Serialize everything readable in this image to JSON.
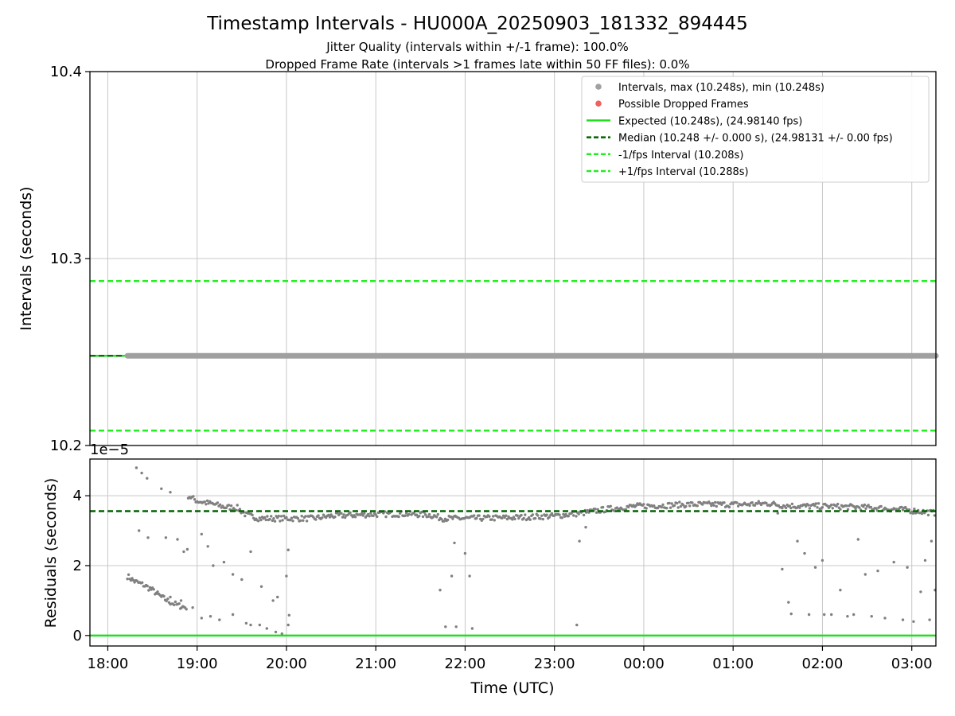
{
  "chart_data": [
    {
      "type": "line",
      "title": "Timestamp Intervals - HU000A_20250903_181332_894445",
      "subtitle_lines": [
        "Jitter Quality (intervals within +/-1 frame): 100.0%",
        "Dropped Frame Rate (intervals >1 frames late within 50 FF files): 0.0%"
      ],
      "ylabel": "Intervals (seconds)",
      "ylim": [
        10.2,
        10.4
      ],
      "xlim_hours": [
        17.8,
        27.27
      ],
      "yticks": [
        {
          "value": 10.2,
          "label": "10.2"
        },
        {
          "value": 10.3,
          "label": "10.3"
        },
        {
          "value": 10.4,
          "label": "10.4"
        }
      ],
      "grid": true,
      "legend_position": "top-right",
      "legend": [
        {
          "label": "Intervals, max (10.248s), min (10.248s)",
          "style": "marker",
          "color": "#a0a0a0"
        },
        {
          "label": "Possible Dropped Frames",
          "style": "marker",
          "color": "#f06060"
        },
        {
          "label": "Expected (10.248s), (24.98140 fps)",
          "style": "solid",
          "color": "#22dd22"
        },
        {
          "label": "Median (10.248 +/- 0.000 s), (24.98131 +/- 0.00 fps)",
          "style": "dashed",
          "color": "#006400"
        },
        {
          "label": "-1/fps Interval (10.208s)",
          "style": "dashed",
          "color": "#22ee22"
        },
        {
          "label": "+1/fps Interval (10.288s)",
          "style": "dashed",
          "color": "#22ee22"
        }
      ],
      "lines": [
        {
          "name": "expected",
          "y": 10.248,
          "color": "#22dd22",
          "style": "solid"
        },
        {
          "name": "median",
          "y": 10.248,
          "color": "#006400",
          "style": "dashed"
        },
        {
          "name": "minus-fps",
          "y": 10.208,
          "color": "#22ee22",
          "style": "dashed"
        },
        {
          "name": "plus-fps",
          "y": 10.288,
          "color": "#22ee22",
          "style": "dashed"
        }
      ],
      "intervals_series": {
        "x_start": 18.22,
        "x_end": 27.27,
        "y": 10.248,
        "color": "#a0a0a0"
      }
    },
    {
      "type": "scatter",
      "xlabel": "Time (UTC)",
      "ylabel": "Residuals (seconds)",
      "y_scale_label": "1e−5",
      "ylim": [
        -0.3,
        5.05
      ],
      "xlim_hours": [
        17.8,
        27.27
      ],
      "grid": true,
      "yticks": [
        {
          "value": 0,
          "label": "0"
        },
        {
          "value": 2,
          "label": "2"
        },
        {
          "value": 4,
          "label": "4"
        }
      ],
      "xticks": [
        {
          "value": 18,
          "label": "18:00"
        },
        {
          "value": 19,
          "label": "19:00"
        },
        {
          "value": 20,
          "label": "20:00"
        },
        {
          "value": 21,
          "label": "21:00"
        },
        {
          "value": 22,
          "label": "22:00"
        },
        {
          "value": 23,
          "label": "23:00"
        },
        {
          "value": 24,
          "label": "00:00"
        },
        {
          "value": 25,
          "label": "01:00"
        },
        {
          "value": 26,
          "label": "02:00"
        },
        {
          "value": 27,
          "label": "03:00"
        }
      ],
      "lines": [
        {
          "name": "zero",
          "y": 0,
          "color": "#22dd22",
          "style": "solid"
        },
        {
          "name": "median",
          "y": 3.56,
          "color": "#006400",
          "style": "dashed"
        }
      ],
      "marker_color": "#808080",
      "main_band": [
        [
          18.22,
          1.7
        ],
        [
          18.3,
          1.55
        ],
        [
          18.4,
          1.45
        ],
        [
          18.5,
          1.3
        ],
        [
          18.6,
          1.1
        ],
        [
          18.7,
          0.95
        ],
        [
          18.8,
          0.85
        ],
        [
          18.88,
          0.8
        ],
        [
          18.9,
          4.0
        ],
        [
          19.0,
          3.85
        ],
        [
          19.1,
          3.8
        ],
        [
          19.2,
          3.75
        ],
        [
          19.3,
          3.68
        ],
        [
          19.45,
          3.65
        ],
        [
          19.55,
          3.45
        ],
        [
          19.7,
          3.35
        ],
        [
          20.0,
          3.35
        ],
        [
          20.3,
          3.35
        ],
        [
          20.5,
          3.42
        ],
        [
          20.8,
          3.45
        ],
        [
          21.0,
          3.47
        ],
        [
          21.3,
          3.48
        ],
        [
          21.6,
          3.45
        ],
        [
          21.75,
          3.35
        ],
        [
          22.0,
          3.35
        ],
        [
          22.5,
          3.37
        ],
        [
          23.0,
          3.42
        ],
        [
          23.3,
          3.5
        ],
        [
          23.6,
          3.62
        ],
        [
          23.9,
          3.7
        ],
        [
          24.2,
          3.72
        ],
        [
          24.5,
          3.75
        ],
        [
          24.8,
          3.75
        ],
        [
          25.1,
          3.75
        ],
        [
          25.4,
          3.78
        ],
        [
          25.55,
          3.72
        ],
        [
          25.8,
          3.7
        ],
        [
          26.0,
          3.7
        ],
        [
          26.3,
          3.68
        ],
        [
          26.6,
          3.65
        ],
        [
          26.9,
          3.6
        ],
        [
          27.1,
          3.55
        ],
        [
          27.27,
          3.5
        ]
      ],
      "outlier_points": [
        [
          18.32,
          4.8
        ],
        [
          18.38,
          4.65
        ],
        [
          18.44,
          4.5
        ],
        [
          18.6,
          4.2
        ],
        [
          18.7,
          4.1
        ],
        [
          18.35,
          3.0
        ],
        [
          18.45,
          2.8
        ],
        [
          18.65,
          2.8
        ],
        [
          18.78,
          2.75
        ],
        [
          18.85,
          2.4
        ],
        [
          19.05,
          2.9
        ],
        [
          19.12,
          2.55
        ],
        [
          19.18,
          2.0
        ],
        [
          19.3,
          2.1
        ],
        [
          19.4,
          1.75
        ],
        [
          19.5,
          1.6
        ],
        [
          19.6,
          2.4
        ],
        [
          19.72,
          1.4
        ],
        [
          19.85,
          1.0
        ],
        [
          19.9,
          1.1
        ],
        [
          20.0,
          1.7
        ],
        [
          20.02,
          2.45
        ],
        [
          18.55,
          1.2
        ],
        [
          18.7,
          1.1
        ],
        [
          18.82,
          1.0
        ],
        [
          18.95,
          0.8
        ],
        [
          19.05,
          0.5
        ],
        [
          19.15,
          0.55
        ],
        [
          19.25,
          0.45
        ],
        [
          19.4,
          0.6
        ],
        [
          19.55,
          0.35
        ],
        [
          19.6,
          0.3
        ],
        [
          19.7,
          0.3
        ],
        [
          19.78,
          0.2
        ],
        [
          19.88,
          0.1
        ],
        [
          19.95,
          0.05
        ],
        [
          20.02,
          0.3
        ],
        [
          20.03,
          0.58
        ],
        [
          21.72,
          1.3
        ],
        [
          21.78,
          0.25
        ],
        [
          21.85,
          1.7
        ],
        [
          21.88,
          2.65
        ],
        [
          21.9,
          0.25
        ],
        [
          22.0,
          2.35
        ],
        [
          22.05,
          1.7
        ],
        [
          22.08,
          0.2
        ],
        [
          23.25,
          0.3
        ],
        [
          23.28,
          2.7
        ],
        [
          23.35,
          3.1
        ],
        [
          25.5,
          3.5
        ],
        [
          25.55,
          1.9
        ],
        [
          25.62,
          0.95
        ],
        [
          25.65,
          0.62
        ],
        [
          25.72,
          2.7
        ],
        [
          25.8,
          2.35
        ],
        [
          25.85,
          0.6
        ],
        [
          25.92,
          1.95
        ],
        [
          26.0,
          2.15
        ],
        [
          26.02,
          0.6
        ],
        [
          26.1,
          0.6
        ],
        [
          26.2,
          1.3
        ],
        [
          26.28,
          0.55
        ],
        [
          26.35,
          0.6
        ],
        [
          26.4,
          2.75
        ],
        [
          26.48,
          1.75
        ],
        [
          26.55,
          0.55
        ],
        [
          26.62,
          1.85
        ],
        [
          26.7,
          0.5
        ],
        [
          26.8,
          2.1
        ],
        [
          26.9,
          0.45
        ],
        [
          26.95,
          1.95
        ],
        [
          27.02,
          0.4
        ],
        [
          27.1,
          1.25
        ],
        [
          27.15,
          2.15
        ],
        [
          27.2,
          0.45
        ],
        [
          27.22,
          2.7
        ],
        [
          27.26,
          1.3
        ]
      ]
    }
  ]
}
